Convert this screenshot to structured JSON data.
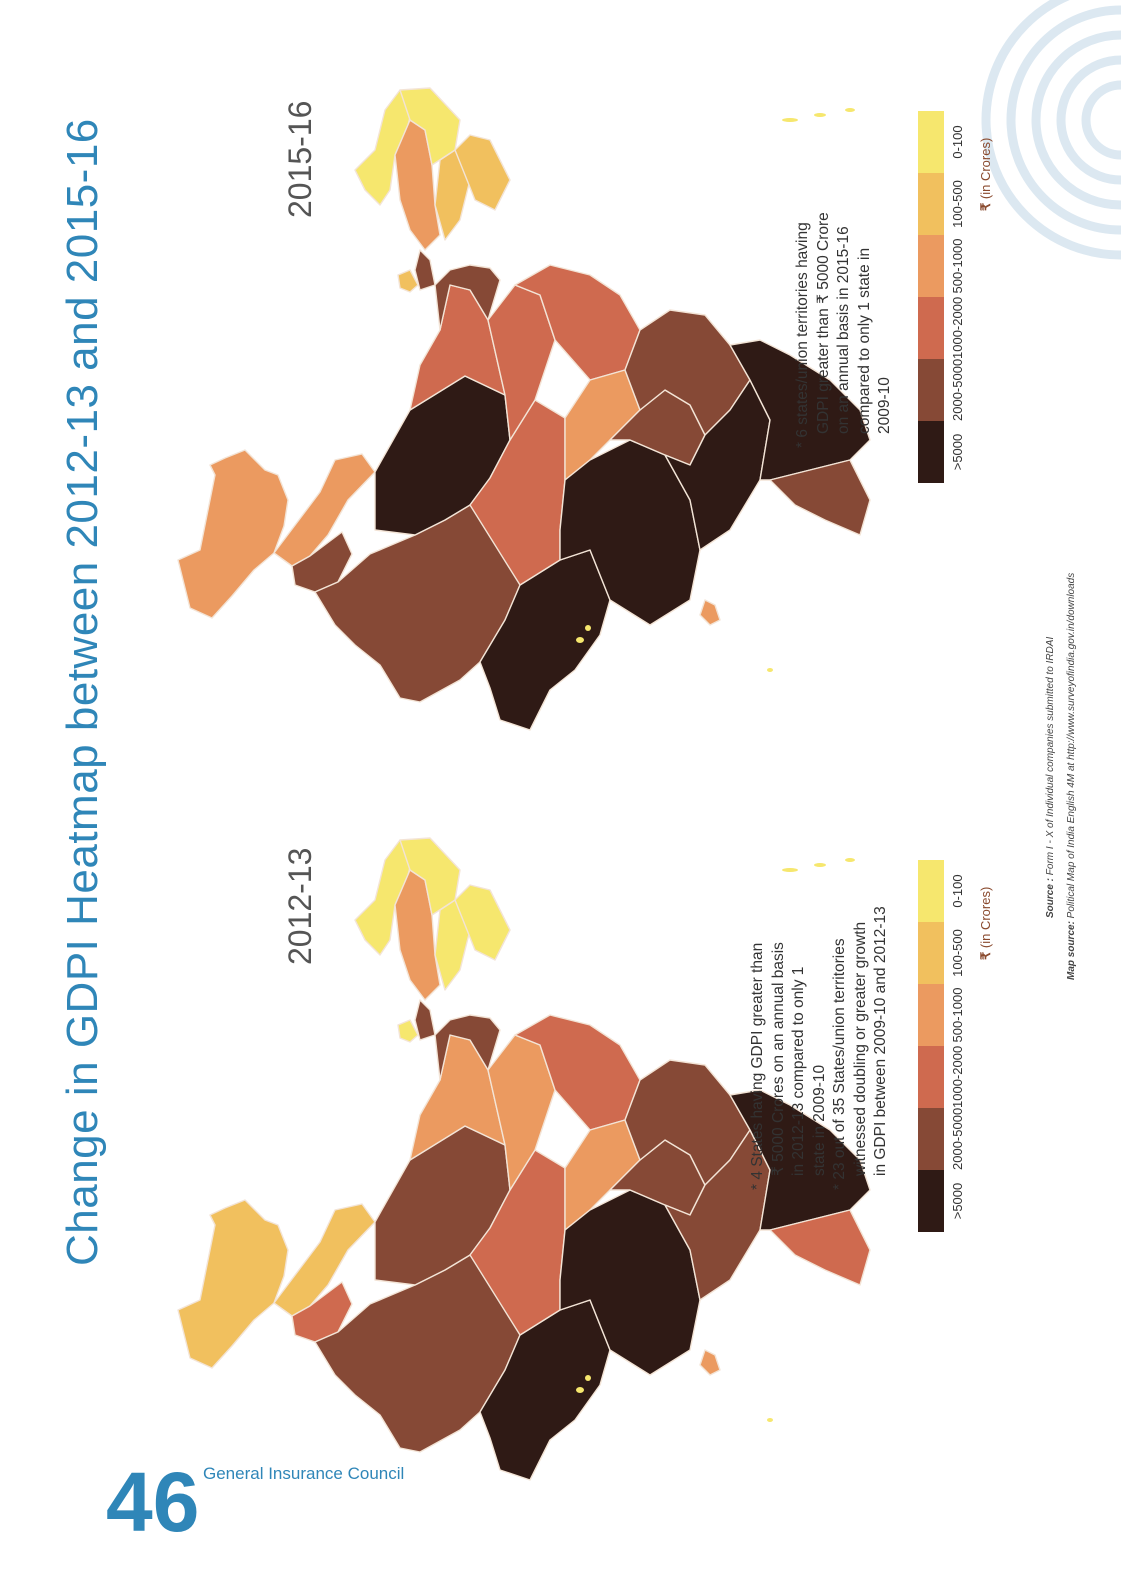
{
  "page": {
    "title": "Change in GDPI Heatmap between 2012-13 and 2015-16",
    "page_number": "46",
    "publisher": "General Insurance Council"
  },
  "maps": [
    {
      "year": "2015-16",
      "note_lines": [
        "6 states/union territories having",
        "GDPI greater than ₹ 5000 Crore",
        "on an annual basis in 2015-16",
        "compared to only 1 state in",
        "2009-10"
      ]
    },
    {
      "year": "2012-13",
      "note_lines": [
        "4 States having GDPI greater than",
        "₹ 5000 Crores on an annual basis",
        "in 2012-13 compared to only 1",
        "state in 2009-10",
        "23 out of 35 States/union territories",
        "witnessed doubling or greater growth",
        "in GDPI between 2009-10 and 2012-13"
      ]
    }
  ],
  "legend": {
    "unit": "(in Crores)",
    "rupee_symbol": "₹",
    "bins": [
      {
        "label": "0-100",
        "color": "#f6e76e"
      },
      {
        "label": "100-500",
        "color": "#f1c05e"
      },
      {
        "label": "500-1000",
        "color": "#eb9a60"
      },
      {
        "label": "1000-2000",
        "color": "#cf6a4f"
      },
      {
        "label": "2000-5000",
        "color": "#864936"
      },
      {
        "label": ">5000",
        "color": "#2f1a15"
      }
    ]
  },
  "sources": {
    "source_label": "Source :",
    "source_text": "Form I - X of Individual companies submitted to IRDAI",
    "map_source_label": "Map source:",
    "map_source_text": "Political Map of India English 4M at http://www.surveyofindia.gov.in/downloads"
  },
  "colors": {
    "accent": "#2f86b8",
    "decoration": "#dce8f1"
  }
}
